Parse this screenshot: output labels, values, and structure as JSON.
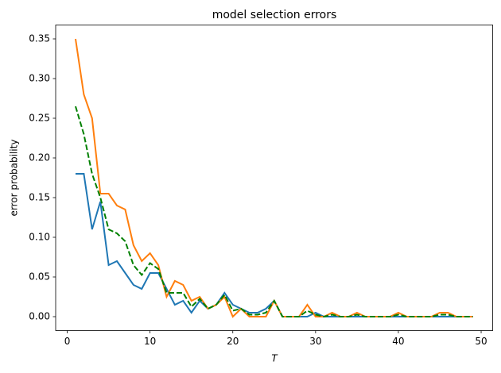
{
  "chart_data": {
    "type": "line",
    "title": "model selection errors",
    "x_label": "T",
    "y_label": "error probability",
    "x": [
      1,
      2,
      3,
      4,
      5,
      6,
      7,
      8,
      9,
      10,
      11,
      12,
      13,
      14,
      15,
      16,
      17,
      18,
      19,
      20,
      21,
      22,
      23,
      24,
      25,
      26,
      27,
      28,
      29,
      30,
      31,
      32,
      33,
      34,
      35,
      36,
      37,
      38,
      39,
      40,
      41,
      42,
      43,
      44,
      45,
      46,
      47,
      48,
      49
    ],
    "series": [
      {
        "name": "blue",
        "color": "#1f77b4",
        "dash": "solid",
        "values": [
          0.18,
          0.18,
          0.11,
          0.145,
          0.065,
          0.07,
          0.055,
          0.04,
          0.035,
          0.055,
          0.055,
          0.035,
          0.015,
          0.02,
          0.005,
          0.02,
          0.01,
          0.015,
          0.03,
          0.015,
          0.01,
          0.005,
          0.005,
          0.01,
          0.02,
          0,
          0,
          0,
          0,
          0.005,
          0,
          0,
          0,
          0,
          0,
          0,
          0,
          0,
          0,
          0,
          0,
          0,
          0,
          0,
          0,
          0,
          0,
          0,
          0
        ]
      },
      {
        "name": "orange",
        "color": "#ff7f0e",
        "dash": "solid",
        "values": [
          0.35,
          0.28,
          0.25,
          0.155,
          0.155,
          0.14,
          0.135,
          0.09,
          0.07,
          0.08,
          0.065,
          0.025,
          0.045,
          0.04,
          0.02,
          0.025,
          0.01,
          0.015,
          0.025,
          0,
          0.01,
          0,
          0,
          0,
          0.02,
          0,
          0,
          0,
          0.015,
          0,
          0,
          0.005,
          0,
          0,
          0.005,
          0,
          0,
          0,
          0,
          0.005,
          0,
          0,
          0,
          0,
          0.005,
          0.005,
          0,
          0,
          0
        ]
      },
      {
        "name": "green",
        "color": "#008000",
        "dash": "dashed",
        "values": [
          0.265,
          0.23,
          0.18,
          0.15,
          0.11,
          0.105,
          0.095,
          0.065,
          0.0525,
          0.0675,
          0.06,
          0.03,
          0.03,
          0.03,
          0.0125,
          0.0225,
          0.01,
          0.015,
          0.0275,
          0.0075,
          0.01,
          0.0025,
          0.0025,
          0.005,
          0.02,
          0,
          0,
          0,
          0.0075,
          0.0025,
          0,
          0.0025,
          0,
          0,
          0.0025,
          0,
          0,
          0,
          0,
          0.0025,
          0,
          0,
          0,
          0,
          0.0025,
          0.0025,
          0,
          0,
          0
        ]
      }
    ],
    "xlim": [
      -1.4,
      51.4
    ],
    "ylim": [
      -0.0175,
      0.3675
    ],
    "xticks": [
      0,
      10,
      20,
      30,
      40,
      50
    ],
    "yticks": [
      {
        "value": 0,
        "label": "0.00"
      },
      {
        "value": 0.05,
        "label": "0.05"
      },
      {
        "value": 0.1,
        "label": "0.10"
      },
      {
        "value": 0.15,
        "label": "0.15"
      },
      {
        "value": 0.2,
        "label": "0.20"
      },
      {
        "value": 0.25,
        "label": "0.25"
      },
      {
        "value": 0.3,
        "label": "0.30"
      },
      {
        "value": 0.35,
        "label": "0.35"
      }
    ],
    "grid": false
  }
}
